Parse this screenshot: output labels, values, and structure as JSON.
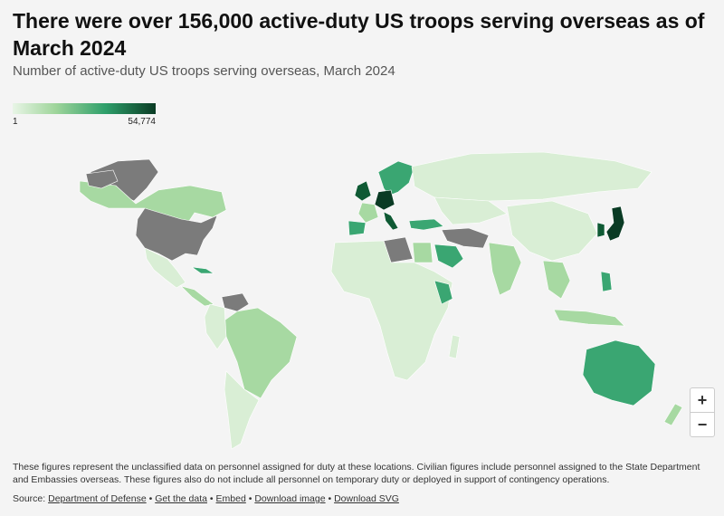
{
  "header": {
    "title": "There were over 156,000 active-duty US troops serving overseas as of March 2024",
    "subtitle": "Number of active-duty US troops serving overseas, March 2024"
  },
  "legend": {
    "min_label": "1",
    "max_label": "54,774",
    "min_value": 1,
    "max_value": 54774,
    "colors": [
      "#e8f5e6",
      "#9fd59b",
      "#2e9f6a",
      "#0a3b24"
    ],
    "no_data_color": "#7b7b7b"
  },
  "zoom": {
    "in_label": "+",
    "out_label": "−"
  },
  "footer": {
    "note": "These figures represent the unclassified data on personnel assigned for duty at these locations. Civilian figures include personnel assigned to the State Department and Embassies overseas. These figures also do not include all personnel on temporary duty or deployed in support of contingency operations.",
    "source_prefix": "Source:",
    "source_link": "Department of Defense",
    "separator": "•",
    "get_data": "Get the data",
    "embed": "Embed",
    "download_image": "Download image",
    "download_svg": "Download SVG"
  },
  "map_colors": {
    "ocean": "#f4f4f4",
    "country_light": "#d9eed5",
    "country_mid": "#a7d9a2",
    "country_strong": "#3aa672",
    "country_dark": "#0f5a34",
    "country_darkest": "#0a3b24",
    "no_data": "#7b7b7b"
  }
}
